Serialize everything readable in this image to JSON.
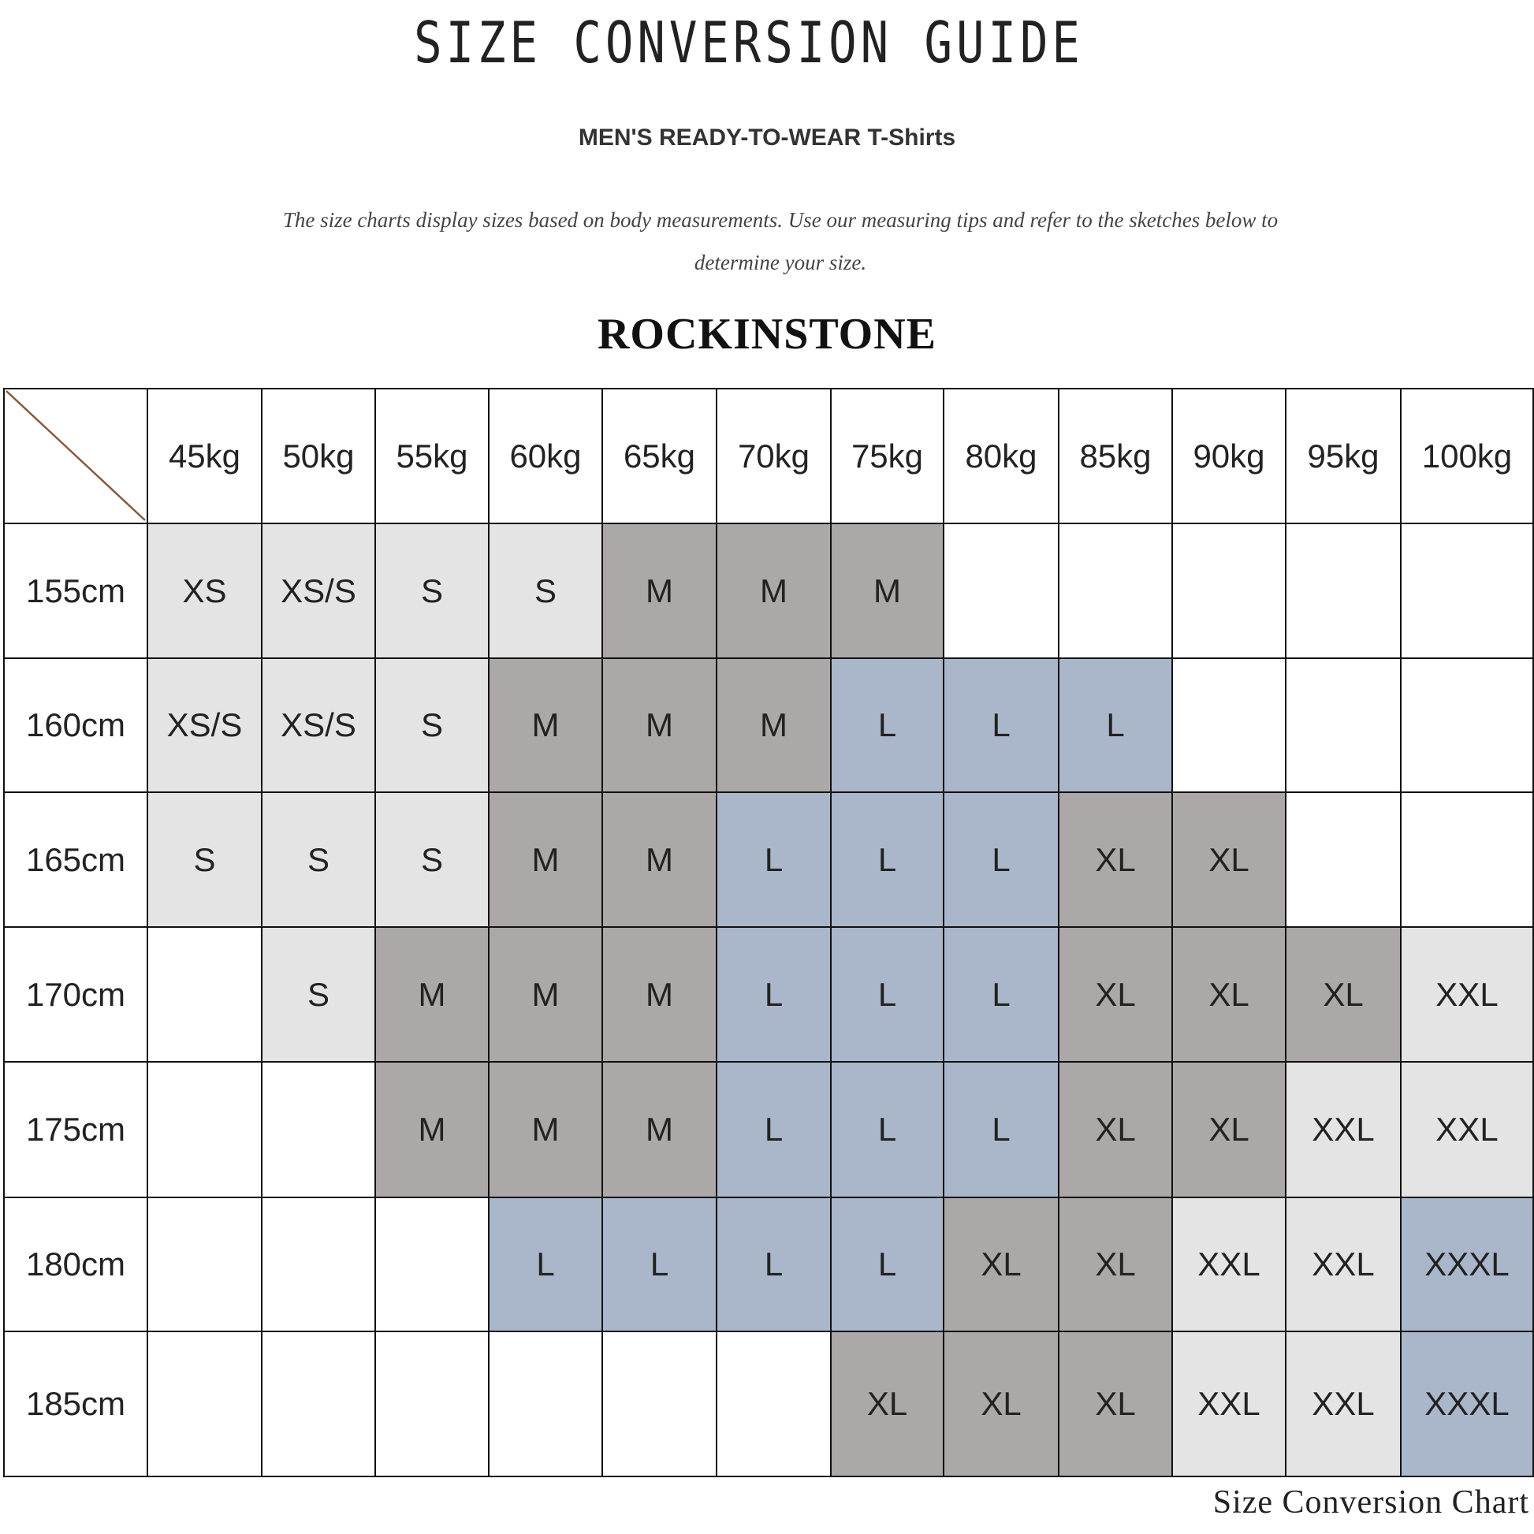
{
  "header": {
    "title": "SIZE CONVERSION GUIDE",
    "subtitle": "MEN'S READY-TO-WEAR T-Shirts",
    "description": "The size charts display sizes based on body measurements. Use our measuring tips and refer to the sketches below to determine your size.",
    "brand": "ROCKINSTONE"
  },
  "watermark": "Rockinstone",
  "size_colors": {
    "XS": "#e4e4e4",
    "XS/S": "#e4e4e4",
    "S": "#e4e4e4",
    "XXL": "#e4e4e4",
    "M": "#aba8a7",
    "XL": "#aba8a7",
    "L": "#aab7ca",
    "XXXL": "#aab7ca",
    "": "#ffffff"
  },
  "table": {
    "weights": [
      "45kg",
      "50kg",
      "55kg",
      "60kg",
      "65kg",
      "70kg",
      "75kg",
      "80kg",
      "85kg",
      "90kg",
      "95kg",
      "100kg"
    ],
    "rows": [
      {
        "height": "155cm",
        "sizes": [
          "XS",
          "XS/S",
          "S",
          "S",
          "M",
          "M",
          "M",
          "",
          "",
          "",
          "",
          ""
        ]
      },
      {
        "height": "160cm",
        "sizes": [
          "XS/S",
          "XS/S",
          "S",
          "M",
          "M",
          "M",
          "L",
          "L",
          "L",
          "",
          "",
          ""
        ]
      },
      {
        "height": "165cm",
        "sizes": [
          "S",
          "S",
          "S",
          "M",
          "M",
          "L",
          "L",
          "L",
          "XL",
          "XL",
          "",
          ""
        ]
      },
      {
        "height": "170cm",
        "sizes": [
          "",
          "S",
          "M",
          "M",
          "M",
          "L",
          "L",
          "L",
          "XL",
          "XL",
          "XL",
          "XXL"
        ]
      },
      {
        "height": "175cm",
        "sizes": [
          "",
          "",
          "M",
          "M",
          "M",
          "L",
          "L",
          "L",
          "XL",
          "XL",
          "XXL",
          "XXL"
        ]
      },
      {
        "height": "180cm",
        "sizes": [
          "",
          "",
          "",
          "L",
          "L",
          "L",
          "L",
          "XL",
          "XL",
          "XXL",
          "XXL",
          "XXXL"
        ]
      },
      {
        "height": "185cm",
        "sizes": [
          "",
          "",
          "",
          "",
          "",
          "",
          "XL",
          "XL",
          "XL",
          "XXL",
          "XXL",
          "XXXL"
        ]
      }
    ]
  },
  "footer": "Size Conversion Chart"
}
